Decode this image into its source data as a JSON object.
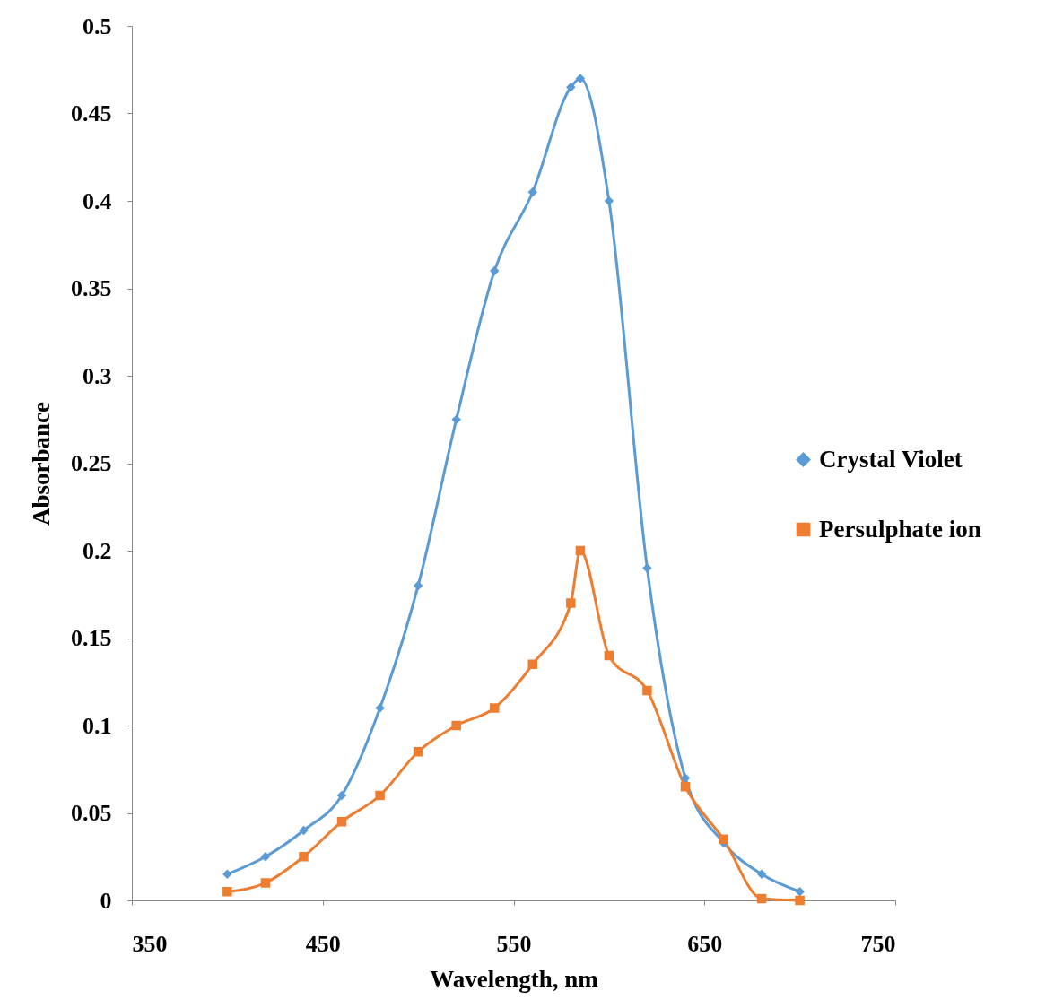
{
  "chart_data": {
    "type": "line",
    "xlabel": "Wavelength, nm",
    "ylabel": "Absorbance",
    "x": [
      400,
      420,
      440,
      460,
      480,
      500,
      520,
      540,
      560,
      580,
      585,
      600,
      620,
      640,
      660,
      680,
      700
    ],
    "series": [
      {
        "name": "Crystal Violet",
        "color": "#5b9bd5",
        "marker": "diamond",
        "values": [
          0.015,
          0.025,
          0.04,
          0.06,
          0.11,
          0.18,
          0.275,
          0.36,
          0.405,
          0.465,
          0.47,
          0.4,
          0.19,
          0.07,
          0.033,
          0.015,
          0.005
        ]
      },
      {
        "name": "Persulphate ion",
        "color": "#ed7d31",
        "marker": "square",
        "values": [
          0.005,
          0.01,
          0.025,
          0.045,
          0.06,
          0.085,
          0.1,
          0.11,
          0.135,
          0.17,
          0.2,
          0.14,
          0.12,
          0.065,
          0.035,
          0.001,
          0
        ]
      }
    ],
    "xlim": [
      350,
      750
    ],
    "xticks": [
      350,
      450,
      550,
      650,
      750
    ],
    "ylim": [
      0,
      0.5
    ],
    "yticks": [
      0,
      0.05,
      0.1,
      0.15,
      0.2,
      0.25,
      0.3,
      0.35,
      0.4,
      0.45,
      0.5
    ],
    "grid": false,
    "legend": "right"
  }
}
